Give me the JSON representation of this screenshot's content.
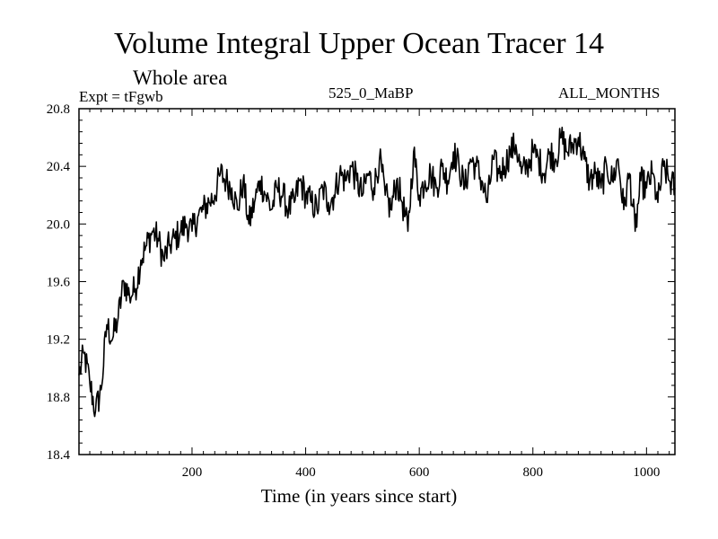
{
  "chart_data": {
    "type": "line",
    "title": "Volume Integral Upper Ocean Tracer 14",
    "subtitle": "Whole area",
    "experiment_label": "Expt = tFgwb",
    "run_label": "525_0_MaBP",
    "months_label": "ALL_MONTHS",
    "xlabel": "Time (in years since start)",
    "ylabel": "",
    "xlim": [
      1,
      1050
    ],
    "ylim": [
      18.4,
      20.8
    ],
    "xticks": [
      200,
      400,
      600,
      800,
      1000
    ],
    "xtick_labels": [
      "200",
      "400",
      "600",
      "800",
      "1000"
    ],
    "yticks": [
      18.4,
      18.8,
      19.2,
      19.6,
      20.0,
      20.4,
      20.8
    ],
    "ytick_labels": [
      "18.4",
      "18.8",
      "19.2",
      "19.6",
      "20.0",
      "20.4",
      "20.8"
    ],
    "grid": false,
    "series": [
      {
        "name": "Tracer 14",
        "color": "#000000",
        "x": [
          1,
          10,
          20,
          30,
          40,
          50,
          60,
          70,
          80,
          90,
          100,
          110,
          120,
          130,
          140,
          150,
          160,
          170,
          180,
          190,
          200,
          210,
          220,
          230,
          240,
          250,
          260,
          270,
          280,
          290,
          300,
          310,
          320,
          330,
          340,
          350,
          360,
          370,
          380,
          390,
          400,
          410,
          420,
          430,
          440,
          450,
          460,
          470,
          480,
          490,
          500,
          510,
          520,
          530,
          540,
          550,
          560,
          570,
          580,
          590,
          600,
          610,
          620,
          630,
          640,
          650,
          660,
          670,
          680,
          690,
          700,
          710,
          720,
          730,
          740,
          750,
          760,
          770,
          780,
          790,
          800,
          810,
          820,
          830,
          840,
          850,
          860,
          870,
          880,
          890,
          900,
          910,
          920,
          930,
          940,
          950,
          960,
          970,
          980,
          990,
          1000,
          1010,
          1020,
          1030,
          1040,
          1050
        ],
        "values": [
          18.95,
          19.1,
          18.9,
          18.7,
          18.85,
          19.3,
          19.2,
          19.35,
          19.6,
          19.5,
          19.55,
          19.75,
          19.85,
          19.95,
          19.9,
          19.75,
          19.85,
          19.9,
          19.95,
          20.0,
          19.95,
          20.05,
          20.1,
          20.15,
          20.2,
          20.35,
          20.3,
          20.25,
          20.1,
          20.3,
          20.0,
          20.15,
          20.3,
          20.2,
          20.1,
          20.25,
          20.2,
          20.1,
          20.15,
          20.3,
          20.2,
          20.15,
          20.1,
          20.25,
          20.15,
          20.2,
          20.35,
          20.3,
          20.4,
          20.3,
          20.2,
          20.35,
          20.25,
          20.45,
          20.2,
          20.1,
          20.3,
          20.15,
          19.95,
          20.5,
          20.2,
          20.3,
          20.35,
          20.25,
          20.4,
          20.3,
          20.5,
          20.4,
          20.25,
          20.45,
          20.4,
          20.3,
          20.15,
          20.45,
          20.35,
          20.4,
          20.5,
          20.55,
          20.35,
          20.4,
          20.5,
          20.45,
          20.35,
          20.5,
          20.45,
          20.6,
          20.5,
          20.55,
          20.6,
          20.45,
          20.3,
          20.35,
          20.25,
          20.4,
          20.3,
          20.45,
          20.1,
          20.35,
          19.95,
          20.3,
          20.25,
          20.35,
          20.15,
          20.4,
          20.3,
          20.25
        ]
      }
    ]
  }
}
